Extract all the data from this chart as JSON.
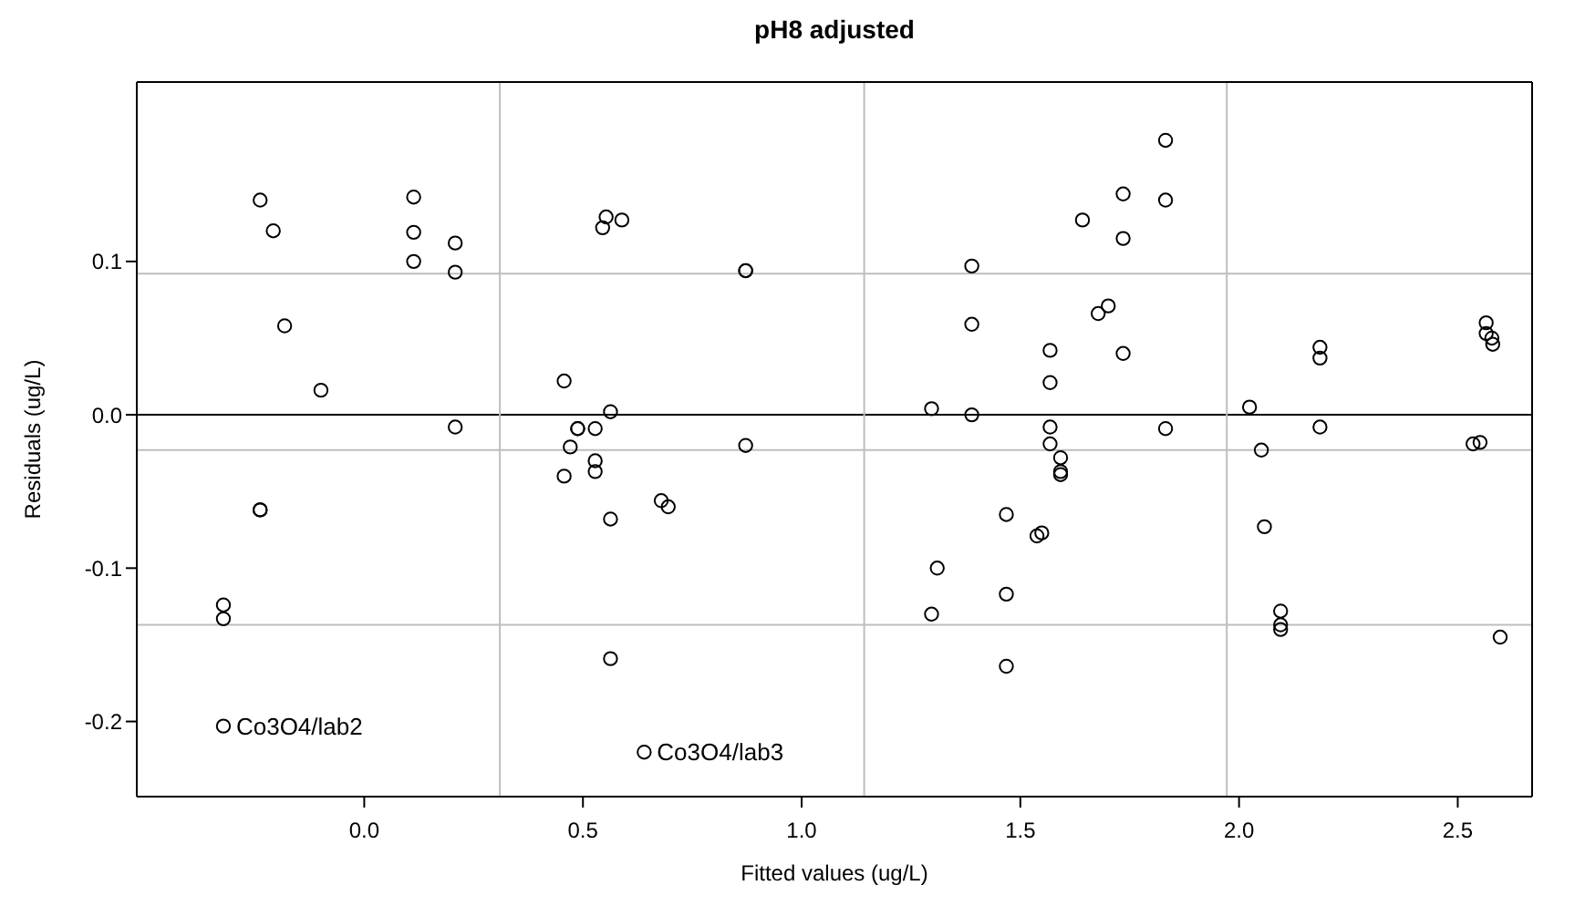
{
  "chart_data": {
    "type": "scatter",
    "title": "pH8 adjusted",
    "xlabel": "Fitted values (ug/L)",
    "ylabel": "Residuals (ug/L)",
    "x": [
      -0.238,
      -0.208,
      -0.182,
      -0.099,
      0.113,
      0.113,
      0.113,
      0.208,
      0.208,
      0.208,
      -0.238,
      -0.238,
      -0.322,
      -0.322,
      -0.322,
      0.545,
      0.553,
      0.589,
      0.457,
      0.563,
      0.488,
      0.488,
      0.528,
      0.471,
      0.528,
      0.528,
      0.457,
      0.563,
      0.563,
      0.64,
      0.872,
      0.872,
      0.872,
      0.679,
      0.695,
      1.389,
      1.389,
      1.297,
      1.389,
      1.568,
      1.568,
      1.568,
      1.568,
      1.592,
      1.592,
      1.592,
      1.468,
      1.538,
      1.549,
      1.31,
      1.297,
      1.468,
      1.468,
      1.642,
      1.832,
      1.735,
      1.832,
      1.735,
      1.678,
      1.701,
      1.735,
      1.832,
      2.024,
      2.051,
      2.058,
      2.095,
      2.095,
      2.095,
      2.185,
      2.185,
      2.185,
      2.565,
      2.565,
      2.578,
      2.58,
      2.535,
      2.551,
      2.597
    ],
    "series": [
      {
        "color": "#000000",
        "values": [
          0.14,
          0.12,
          0.058,
          0.016,
          0.142,
          0.119,
          0.1,
          0.112,
          0.093,
          -0.008,
          -0.062,
          -0.062,
          -0.124,
          -0.133,
          -0.203,
          0.122,
          0.129,
          0.127,
          0.022,
          0.002,
          -0.009,
          -0.009,
          -0.009,
          -0.021,
          -0.03,
          -0.037,
          -0.04,
          -0.068,
          -0.159,
          -0.22,
          0.094,
          0.094,
          -0.02,
          -0.056,
          -0.06,
          0.097,
          0.059,
          0.004,
          0.0,
          0.042,
          0.021,
          -0.008,
          -0.019,
          -0.028,
          -0.037,
          -0.039,
          -0.065,
          -0.079,
          -0.077,
          -0.1,
          -0.13,
          -0.117,
          -0.164,
          0.127,
          0.179,
          0.144,
          0.14,
          0.115,
          0.066,
          0.071,
          0.04,
          -0.009,
          0.005,
          -0.023,
          -0.073,
          -0.128,
          -0.137,
          -0.14,
          0.044,
          0.037,
          -0.008,
          0.06,
          0.053,
          0.05,
          0.046,
          -0.019,
          -0.018,
          -0.145
        ]
      }
    ],
    "xlim": [
      -0.52,
      2.67
    ],
    "ylim": [
      -0.249,
      0.217
    ],
    "xticks": [
      {
        "value": 0,
        "label": "0.0"
      },
      0.5,
      {
        "value": 1,
        "label": "1.0"
      },
      1.5,
      {
        "value": 2,
        "label": "2.0"
      },
      2.5
    ],
    "yticks": [
      {
        "value": -0.2,
        "label": "-0.2"
      },
      -0.1,
      {
        "value": 0,
        "label": "0.0"
      },
      0.1
    ],
    "marker": "circle",
    "ref_lines": [
      {
        "axis": "y",
        "value": 0,
        "color": "#000000"
      },
      {
        "axis": "y",
        "value": 0.092,
        "color": "#bebebe"
      },
      {
        "axis": "y",
        "value": -0.023,
        "color": "#bebebe"
      },
      {
        "axis": "y",
        "value": -0.137,
        "color": "#bebebe"
      },
      {
        "axis": "x",
        "value": 0.31,
        "color": "#bebebe"
      },
      {
        "axis": "x",
        "value": 1.143,
        "color": "#bebebe"
      },
      {
        "axis": "x",
        "value": 1.972,
        "color": "#bebebe"
      }
    ],
    "annotations": [
      {
        "text": "Co3O4/lab2",
        "x": -0.322,
        "y": -0.203
      },
      {
        "text": "Co3O4/lab3",
        "x": 0.64,
        "y": -0.22
      }
    ]
  }
}
